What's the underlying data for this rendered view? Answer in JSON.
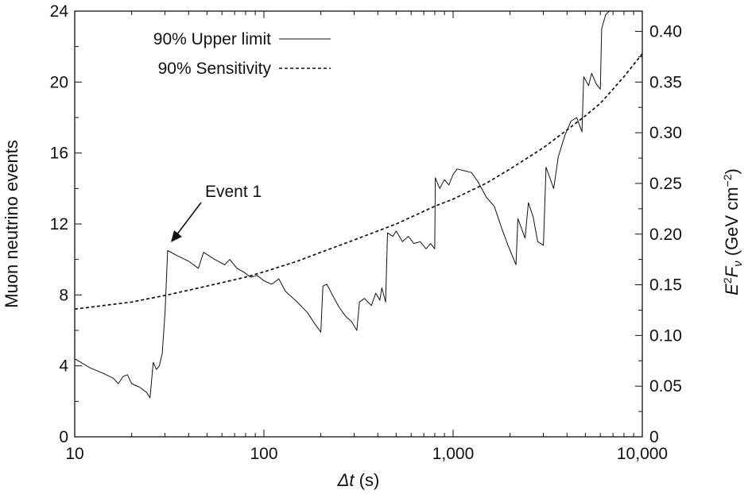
{
  "chart_data": {
    "type": "line",
    "x_scale": "log",
    "xlim": [
      10,
      10000
    ],
    "ylim": [
      0,
      24
    ],
    "y2lim": [
      0,
      0.42
    ],
    "xlabel": "Δt (s)",
    "ylabel": "Muon neutrino events",
    "y2label": "E²Fν (GeV cm⁻²)",
    "x_ticks": [
      "10",
      "100",
      "1,000",
      "10,000"
    ],
    "y_ticks": [
      "0",
      "4",
      "8",
      "12",
      "16",
      "20",
      "24"
    ],
    "y2_ticks": [
      "0",
      "0.05",
      "0.10",
      "0.15",
      "0.20",
      "0.25",
      "0.30",
      "0.35",
      "0.40"
    ],
    "legend_position": "top-left",
    "grid": false,
    "annotation": {
      "text": "Event 1",
      "x": 31,
      "y": 10.5
    },
    "series": [
      {
        "name": "90% Upper limit",
        "style": "solid",
        "points": [
          [
            10,
            4.4
          ],
          [
            12,
            3.9
          ],
          [
            14,
            3.6
          ],
          [
            16,
            3.3
          ],
          [
            17,
            3.0
          ],
          [
            18,
            3.4
          ],
          [
            19,
            3.5
          ],
          [
            20,
            3.0
          ],
          [
            22,
            2.8
          ],
          [
            24,
            2.5
          ],
          [
            25,
            2.2
          ],
          [
            26,
            4.2
          ],
          [
            27,
            3.8
          ],
          [
            28,
            4.0
          ],
          [
            29,
            4.7
          ],
          [
            30,
            7.0
          ],
          [
            31,
            10.5
          ],
          [
            35,
            10.2
          ],
          [
            40,
            9.9
          ],
          [
            45,
            9.5
          ],
          [
            48,
            10.4
          ],
          [
            55,
            10.0
          ],
          [
            62,
            9.7
          ],
          [
            66,
            10.0
          ],
          [
            72,
            9.5
          ],
          [
            78,
            9.3
          ],
          [
            85,
            9.0
          ],
          [
            92,
            9.1
          ],
          [
            100,
            8.8
          ],
          [
            110,
            8.6
          ],
          [
            120,
            8.9
          ],
          [
            130,
            8.2
          ],
          [
            150,
            7.6
          ],
          [
            170,
            7.0
          ],
          [
            185,
            6.4
          ],
          [
            200,
            5.9
          ],
          [
            205,
            8.5
          ],
          [
            215,
            8.6
          ],
          [
            230,
            8.0
          ],
          [
            250,
            7.3
          ],
          [
            270,
            6.8
          ],
          [
            290,
            6.5
          ],
          [
            310,
            6.0
          ],
          [
            320,
            7.6
          ],
          [
            340,
            7.8
          ],
          [
            370,
            7.4
          ],
          [
            390,
            8.1
          ],
          [
            410,
            7.7
          ],
          [
            420,
            8.4
          ],
          [
            440,
            7.6
          ],
          [
            450,
            11.5
          ],
          [
            480,
            11.3
          ],
          [
            500,
            11.6
          ],
          [
            540,
            11.0
          ],
          [
            580,
            11.3
          ],
          [
            620,
            10.9
          ],
          [
            670,
            11.0
          ],
          [
            720,
            10.6
          ],
          [
            760,
            10.9
          ],
          [
            800,
            10.6
          ],
          [
            805,
            14.6
          ],
          [
            850,
            14.0
          ],
          [
            900,
            14.5
          ],
          [
            950,
            14.2
          ],
          [
            1000,
            14.8
          ],
          [
            1050,
            15.1
          ],
          [
            1150,
            15.0
          ],
          [
            1250,
            14.9
          ],
          [
            1350,
            14.4
          ],
          [
            1500,
            13.5
          ],
          [
            1650,
            13.0
          ],
          [
            1800,
            11.8
          ],
          [
            1950,
            10.8
          ],
          [
            2150,
            9.7
          ],
          [
            2200,
            12.3
          ],
          [
            2400,
            11.2
          ],
          [
            2500,
            13.2
          ],
          [
            2650,
            12.4
          ],
          [
            2800,
            11.0
          ],
          [
            3000,
            10.8
          ],
          [
            3100,
            15.2
          ],
          [
            3400,
            14.0
          ],
          [
            3600,
            15.8
          ],
          [
            3900,
            17.0
          ],
          [
            4200,
            17.8
          ],
          [
            4500,
            18.0
          ],
          [
            4800,
            17.2
          ],
          [
            4900,
            20.3
          ],
          [
            5200,
            19.8
          ],
          [
            5400,
            20.5
          ],
          [
            5700,
            19.9
          ],
          [
            6000,
            19.6
          ],
          [
            6100,
            23.0
          ],
          [
            6400,
            23.8
          ],
          [
            6700,
            24.2
          ]
        ]
      },
      {
        "name": "90% Sensitivity",
        "style": "dashed",
        "points": [
          [
            10,
            7.2
          ],
          [
            20,
            7.6
          ],
          [
            31,
            8.0
          ],
          [
            50,
            8.5
          ],
          [
            80,
            9.0
          ],
          [
            100,
            9.3
          ],
          [
            150,
            9.9
          ],
          [
            200,
            10.4
          ],
          [
            300,
            11.1
          ],
          [
            500,
            12.0
          ],
          [
            800,
            13.0
          ],
          [
            1000,
            13.4
          ],
          [
            1500,
            14.3
          ],
          [
            2000,
            15.1
          ],
          [
            3000,
            16.3
          ],
          [
            4000,
            17.3
          ],
          [
            5000,
            18.1
          ],
          [
            6000,
            18.8
          ],
          [
            7000,
            19.6
          ],
          [
            8000,
            20.3
          ],
          [
            10000,
            21.6
          ]
        ]
      }
    ]
  }
}
